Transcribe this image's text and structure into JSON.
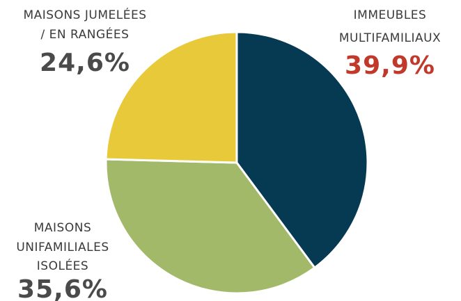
{
  "chart_data": {
    "type": "pie",
    "categories": [
      [
        "IMMEUBLES",
        "MULTIFAMILIAUX"
      ],
      [
        "MAISONS",
        "UNIFAMILIALES",
        "ISOLÉES"
      ],
      [
        "MAISONS JUMELÉES",
        "/ EN RANGÉES"
      ]
    ],
    "values": [
      39.9,
      35.6,
      24.6
    ],
    "value_labels": [
      "39,9%",
      "35,6%",
      "24,6%"
    ],
    "colors": [
      "#053a52",
      "#a3b96a",
      "#e8c93a"
    ],
    "value_label_colors": [
      "#c0392b",
      "#4a4a4a",
      "#4a4a4a"
    ]
  }
}
